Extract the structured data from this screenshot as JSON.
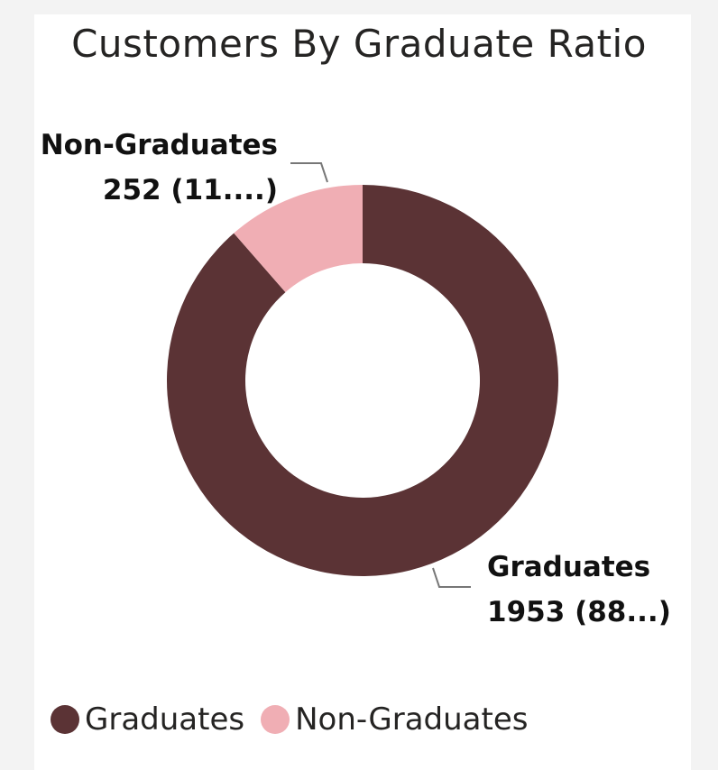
{
  "colors": {
    "graduates": "#5b3335",
    "non_graduates": "#f0aeb4",
    "leader": "#777777"
  },
  "chart_data": {
    "type": "pie",
    "title": "Customers By Graduate Ratio",
    "style": "donut",
    "slices": [
      {
        "name": "Graduates",
        "value": 1953,
        "percent_label": "(88...)"
      },
      {
        "name": "Non-Graduates",
        "value": 252,
        "percent_label": "(11....)"
      }
    ],
    "labels": {
      "graduates": {
        "name": "Graduates",
        "detail": "1953 (88...)"
      },
      "non_graduates": {
        "name": "Non-Graduates",
        "detail": "252 (11....)"
      }
    },
    "legend": {
      "placement": "bottom-left",
      "items": [
        "Graduates",
        "Non-Graduates"
      ]
    }
  }
}
